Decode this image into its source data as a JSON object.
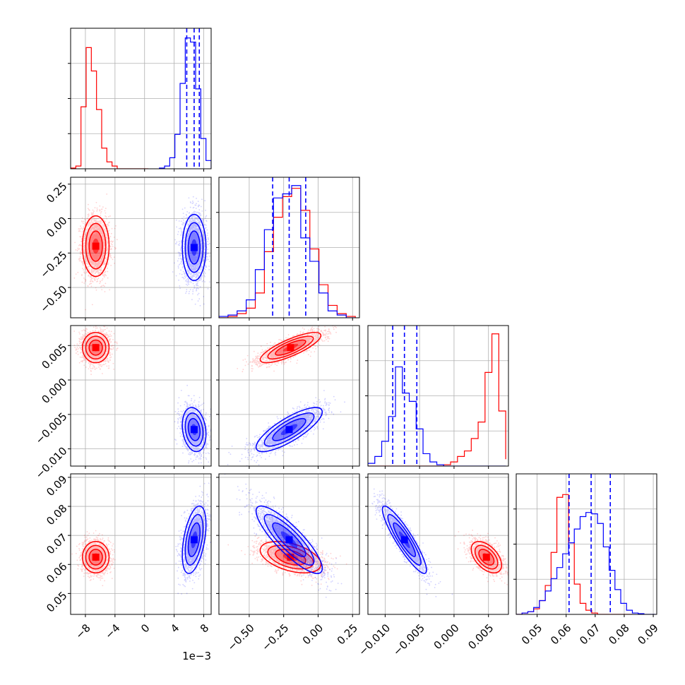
{
  "chart_data": {
    "type": "scatter",
    "title": "",
    "layout": "corner plot (lower triangle: 2D density contours with scatter points; diagonal: 1D step histograms with blue dashed quantile lines)",
    "grid": true,
    "colors": {
      "series_a": "#ff0000",
      "series_b": "#0000ff",
      "grid": "#b0b0b0"
    },
    "params": [
      {
        "range": [
          -10,
          9
        ],
        "ticks": [
          -8,
          -4,
          0,
          4,
          8
        ],
        "tick_labels": [
          "−8",
          "−4",
          "0",
          "4",
          "8"
        ],
        "offset_label": "1e−3"
      },
      {
        "range": [
          -0.72,
          0.3
        ],
        "ticks": [
          -0.5,
          -0.25,
          0.0,
          0.25
        ],
        "tick_labels": [
          "−0.50",
          "−0.25",
          "0.00",
          "0.25"
        ]
      },
      {
        "range": [
          -0.0125,
          0.0079
        ],
        "ticks": [
          -0.01,
          -0.005,
          0.0,
          0.005
        ],
        "tick_labels": [
          "−0.010",
          "−0.005",
          "0.000",
          "0.005"
        ]
      },
      {
        "range": [
          0.0428,
          0.0912
        ],
        "ticks": [
          0.05,
          0.06,
          0.07,
          0.08,
          0.09
        ],
        "tick_labels": [
          "0.05",
          "0.06",
          "0.07",
          "0.08",
          "0.09"
        ]
      }
    ],
    "series": [
      {
        "color": "#ff0000",
        "mean": [
          -6.6,
          -0.2,
          0.0047,
          0.0625
        ],
        "std": [
          0.9,
          0.11,
          0.0011,
          0.0027
        ],
        "corr": [
          [
            1,
            0,
            0,
            0
          ],
          [
            0,
            1,
            0.8,
            -0.45
          ],
          [
            0,
            0.8,
            1,
            -0.5
          ],
          [
            0,
            -0.45,
            -0.5,
            1
          ]
        ],
        "quantiles": [],
        "hist": [
          {
            "bins": [
              -10,
              -9.3,
              -8.6,
              -7.9,
              -7.2,
              -6.5,
              -5.8,
              -5.1,
              -4.4,
              -3.7,
              -3.0,
              -2.3,
              -1.6,
              -0.9,
              -0.2,
              0.5
            ],
            "counts": [
              0.005,
              0.02,
              0.45,
              0.88,
              0.71,
              0.43,
              0.15,
              0.05,
              0.02,
              0.0,
              0.0,
              0.0,
              0.0,
              0.0,
              0.0
            ]
          },
          {
            "bins": [
              -0.72,
              -0.654,
              -0.588,
              -0.522,
              -0.456,
              -0.39,
              -0.324,
              -0.258,
              -0.192,
              -0.126,
              -0.06,
              0.006,
              0.072,
              0.138,
              0.204,
              0.27
            ],
            "counts": [
              0.0,
              0.01,
              0.03,
              0.07,
              0.18,
              0.48,
              0.73,
              0.88,
              0.94,
              0.78,
              0.5,
              0.24,
              0.09,
              0.03,
              0.01
            ]
          },
          {
            "bins": [
              -0.0125,
              -0.0115,
              -0.0105,
              -0.0095,
              -0.0085,
              -0.0075,
              -0.0065,
              -0.0055,
              -0.0045,
              -0.0035,
              -0.0025,
              -0.0015,
              -0.0005,
              0.0005,
              0.0015,
              0.0025,
              0.0035,
              0.0045,
              0.0055,
              0.0065,
              0.0075
            ],
            "counts": [
              0,
              0,
              0,
              0,
              0,
              0,
              0,
              0,
              0,
              0,
              0,
              0.01,
              0.03,
              0.07,
              0.11,
              0.2,
              0.32,
              0.68,
              0.96,
              0.4,
              0.05
            ]
          },
          {
            "bins": [
              0.0428,
              0.0448,
              0.0468,
              0.0488,
              0.0508,
              0.0528,
              0.0548,
              0.0568,
              0.0588,
              0.0608,
              0.0628,
              0.0648,
              0.0668,
              0.0688,
              0.0708,
              0.0728,
              0.0748,
              0.0768,
              0.0788,
              0.0808,
              0.0828
            ],
            "counts": [
              0.0,
              0.01,
              0.02,
              0.04,
              0.1,
              0.21,
              0.45,
              0.85,
              0.87,
              0.52,
              0.22,
              0.08,
              0.03,
              0.01,
              0.0,
              0.0,
              0.0,
              0.0,
              0.0,
              0.0
            ]
          }
        ]
      },
      {
        "color": "#0000ff",
        "mean": [
          6.7,
          -0.21,
          -0.0072,
          0.0685
        ],
        "std": [
          0.8,
          0.12,
          0.0016,
          0.0058
        ],
        "corr": [
          [
            1,
            0,
            -0.2,
            0.45
          ],
          [
            0,
            1,
            0.8,
            -0.85
          ],
          [
            -0.2,
            0.8,
            1,
            -0.9
          ],
          [
            0.45,
            -0.85,
            -0.9,
            1
          ]
        ],
        "quantiles": [
          [
            5.7,
            6.7,
            7.4
          ],
          [
            -0.33,
            -0.21,
            -0.09
          ],
          [
            -0.0089,
            -0.0072,
            -0.0054
          ],
          [
            0.061,
            0.0686,
            0.0752
          ]
        ],
        "hist": [
          {
            "bins": [
              2.0,
              2.7,
              3.4,
              4.1,
              4.8,
              5.5,
              6.2,
              6.9,
              7.6,
              8.3,
              9.0
            ],
            "counts": [
              0.005,
              0.02,
              0.08,
              0.25,
              0.62,
              0.95,
              0.92,
              0.58,
              0.22,
              0.06
            ]
          },
          {
            "bins": [
              -0.72,
              -0.654,
              -0.588,
              -0.522,
              -0.456,
              -0.39,
              -0.324,
              -0.258,
              -0.192,
              -0.126,
              -0.06,
              0.006,
              0.072,
              0.138,
              0.204,
              0.27
            ],
            "counts": [
              0.01,
              0.02,
              0.05,
              0.13,
              0.35,
              0.64,
              0.87,
              0.9,
              0.96,
              0.58,
              0.41,
              0.18,
              0.05,
              0.02,
              0.0
            ]
          },
          {
            "bins": [
              -0.0125,
              -0.0115,
              -0.0105,
              -0.0095,
              -0.0085,
              -0.0075,
              -0.0065,
              -0.0055,
              -0.0045,
              -0.0035,
              -0.0025,
              -0.0015,
              -0.0005,
              0.0005,
              0.0015,
              0.0025,
              0.0035,
              0.0045,
              0.0055,
              0.0065,
              0.0075
            ],
            "counts": [
              0.02,
              0.07,
              0.18,
              0.36,
              0.72,
              0.53,
              0.47,
              0.27,
              0.09,
              0.03,
              0.01,
              0.0,
              0.0,
              0.0,
              0.0,
              0.0,
              0.0,
              0.0,
              0.0,
              0.0
            ]
          },
          {
            "bins": [
              0.0428,
              0.0448,
              0.0468,
              0.0488,
              0.0508,
              0.0528,
              0.0548,
              0.0568,
              0.0588,
              0.0608,
              0.0628,
              0.0648,
              0.0668,
              0.0688,
              0.0708,
              0.0728,
              0.0748,
              0.0768,
              0.0788,
              0.0808,
              0.0828,
              0.0848,
              0.0868,
              0.0888,
              0.0908
            ],
            "counts": [
              0.0,
              0.01,
              0.02,
              0.05,
              0.1,
              0.17,
              0.26,
              0.34,
              0.44,
              0.52,
              0.62,
              0.71,
              0.74,
              0.73,
              0.66,
              0.49,
              0.32,
              0.18,
              0.08,
              0.03,
              0.01,
              0.005,
              0.0,
              0.0
            ]
          }
        ]
      }
    ]
  }
}
